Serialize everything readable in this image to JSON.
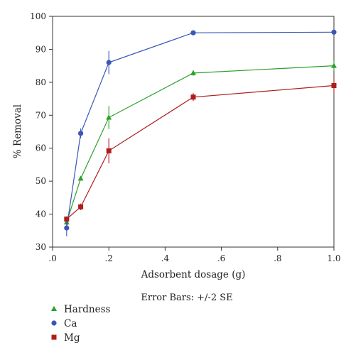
{
  "chart_data": {
    "type": "line",
    "xlabel": "Adsorbent dosage (g)",
    "ylabel": "% Removal",
    "note": "Error Bars: +/-2 SE",
    "xlim": [
      0.0,
      1.0
    ],
    "ylim": [
      30,
      100
    ],
    "x_ticks": [
      0.0,
      0.2,
      0.4,
      0.6,
      0.8,
      1.0
    ],
    "x_tick_labels": [
      ".0",
      ".2",
      ".4",
      ".6",
      ".8",
      "1.0"
    ],
    "y_ticks": [
      30,
      40,
      50,
      60,
      70,
      80,
      90,
      100
    ],
    "y_tick_labels": [
      "30",
      "40",
      "50",
      "60",
      "70",
      "80",
      "90",
      "100"
    ],
    "grid": false,
    "legend_placement": "bottom-left",
    "series": [
      {
        "name": "Hardness",
        "color": "#2ca02c",
        "marker": "triangle",
        "x": [
          0.05,
          0.1,
          0.2,
          0.5,
          1.0
        ],
        "y": [
          37.5,
          50.8,
          69.3,
          82.8,
          85.0
        ],
        "err": [
          1.0,
          0.6,
          3.5,
          0.8,
          1.5
        ]
      },
      {
        "name": "Ca",
        "color": "#3c56b5",
        "marker": "circle",
        "x": [
          0.05,
          0.1,
          0.2,
          0.5,
          1.0
        ],
        "y": [
          35.8,
          64.5,
          86.0,
          95.0,
          95.2
        ],
        "err": [
          2.5,
          1.5,
          3.5,
          0.4,
          0.4
        ]
      },
      {
        "name": "Mg",
        "color": "#b01c1c",
        "marker": "square",
        "x": [
          0.05,
          0.1,
          0.2,
          0.5,
          1.0
        ],
        "y": [
          38.5,
          42.2,
          59.2,
          75.5,
          79.0
        ],
        "err": [
          0.8,
          1.0,
          3.8,
          1.2,
          2.5
        ]
      }
    ]
  }
}
